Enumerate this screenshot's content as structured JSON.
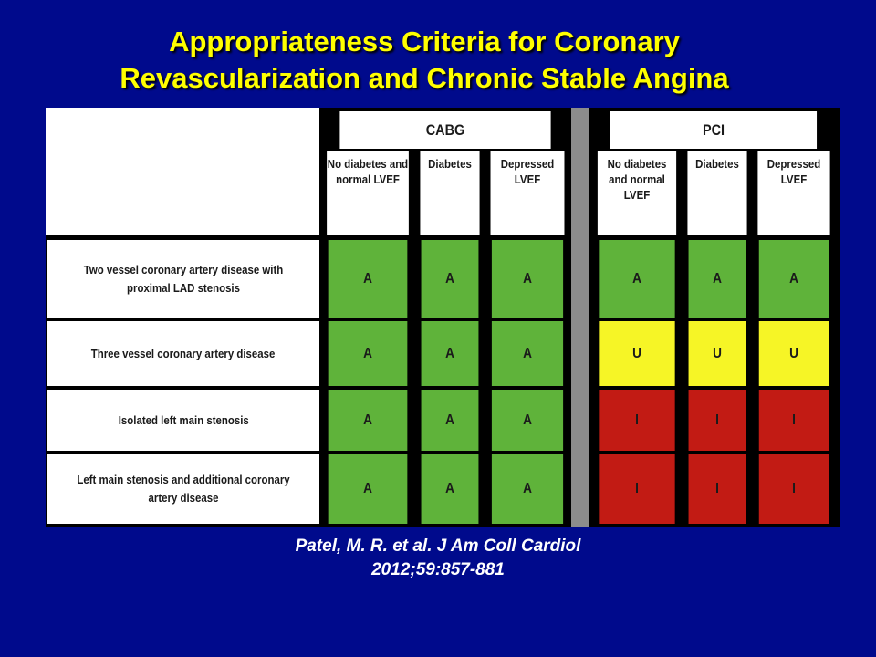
{
  "title_line1": "Appropriateness Criteria for Coronary",
  "title_line2": "Revascularization and Chronic Stable Angina",
  "groups": {
    "cabg": "CABG",
    "pci": "PCI"
  },
  "subcolumns": [
    "No diabetes and normal LVEF",
    "Diabetes",
    "Depressed LVEF"
  ],
  "rows": [
    {
      "label": "Two vessel coronary artery disease with proximal LAD stenosis",
      "cabg": [
        "A",
        "A",
        "A"
      ],
      "pci": [
        "A",
        "A",
        "A"
      ]
    },
    {
      "label": "Three vessel coronary artery disease",
      "cabg": [
        "A",
        "A",
        "A"
      ],
      "pci": [
        "U",
        "U",
        "U"
      ]
    },
    {
      "label": "Isolated left main stenosis",
      "cabg": [
        "A",
        "A",
        "A"
      ],
      "pci": [
        "I",
        "I",
        "I"
      ]
    },
    {
      "label": "Left main stenosis and additional coronary artery disease",
      "cabg": [
        "A",
        "A",
        "A"
      ],
      "pci": [
        "I",
        "I",
        "I"
      ]
    }
  ],
  "colors": {
    "A": "#5fb33a",
    "U": "#f6f526",
    "I": "#c21b14",
    "background": "#000a8c",
    "title": "#ffff00"
  },
  "citation_line1": "Patel, M. R. et al. J Am Coll Cardiol",
  "citation_line2": "2012;59:857-881"
}
